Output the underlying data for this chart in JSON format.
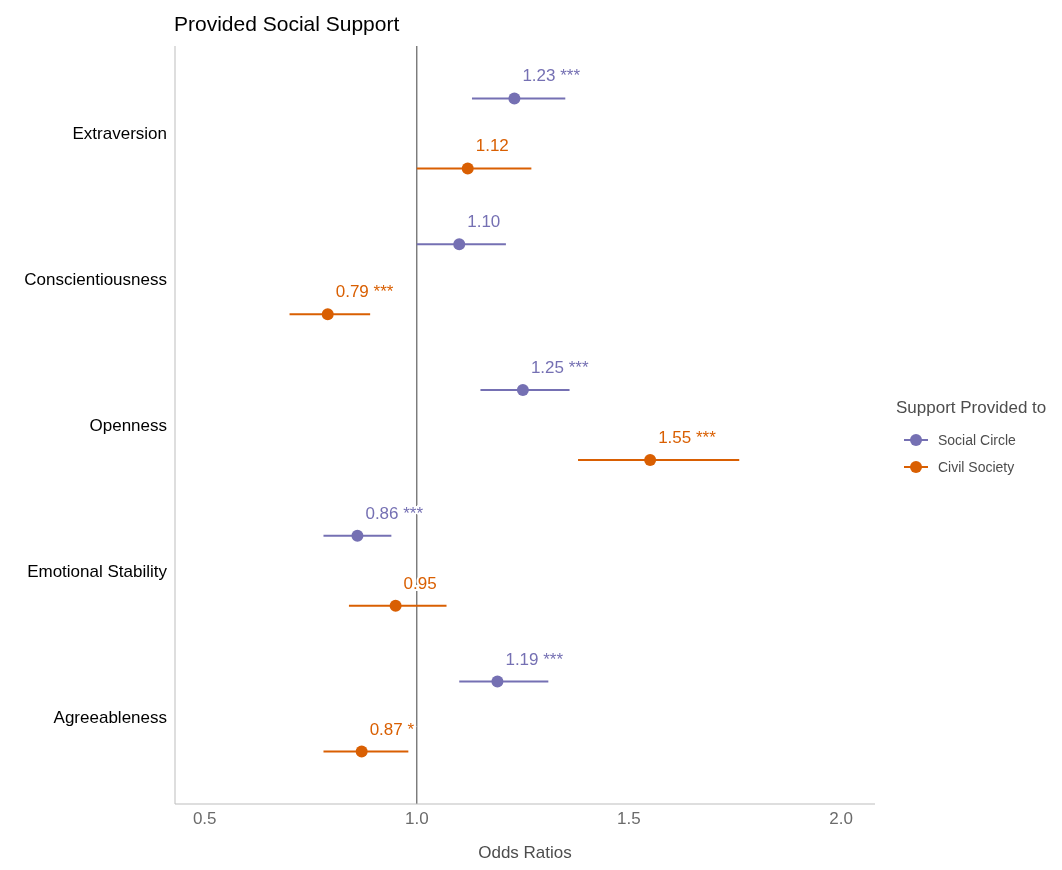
{
  "chart_data": {
    "type": "scatter",
    "title": "Provided Social Support",
    "xlabel": "Odds Ratios",
    "legend_title": "Support Provided to",
    "orientation": "horizontal",
    "categories": [
      "Extraversion",
      "Conscientiousness",
      "Openness",
      "Emotional Stability",
      "Agreeableness"
    ],
    "series": [
      {
        "name": "Social Circle",
        "color": "#7570b3",
        "values": [
          1.23,
          1.1,
          1.25,
          0.86,
          1.19
        ],
        "errors": [
          [
            1.13,
            1.35
          ],
          [
            1.0,
            1.21
          ],
          [
            1.15,
            1.36
          ],
          [
            0.78,
            0.94
          ],
          [
            1.1,
            1.31
          ]
        ],
        "value_labels": [
          "1.23 ***",
          "1.10",
          "1.25 ***",
          "0.86 ***",
          "1.19 ***"
        ]
      },
      {
        "name": "Civil Society",
        "color": "#d95f02",
        "values": [
          1.12,
          0.79,
          1.55,
          0.95,
          0.87
        ],
        "errors": [
          [
            1.0,
            1.27
          ],
          [
            0.7,
            0.89
          ],
          [
            1.38,
            1.76
          ],
          [
            0.84,
            1.07
          ],
          [
            0.78,
            0.98
          ]
        ],
        "value_labels": [
          "1.12",
          "0.79 ***",
          "1.55 ***",
          "0.95",
          "0.87 *"
        ]
      }
    ],
    "xlim": [
      0.43,
      2.08
    ],
    "xticks": [
      {
        "value": 0.5,
        "label": "0.5"
      },
      {
        "value": 1,
        "label": "1.0"
      },
      {
        "value": 1.5,
        "label": "1.5"
      },
      {
        "value": 2,
        "label": "2.0"
      }
    ],
    "ref_lines": [
      {
        "axis": "x",
        "value": 1,
        "color": "#404040"
      }
    ],
    "marker": "circle",
    "legend": "right",
    "grid": false
  }
}
